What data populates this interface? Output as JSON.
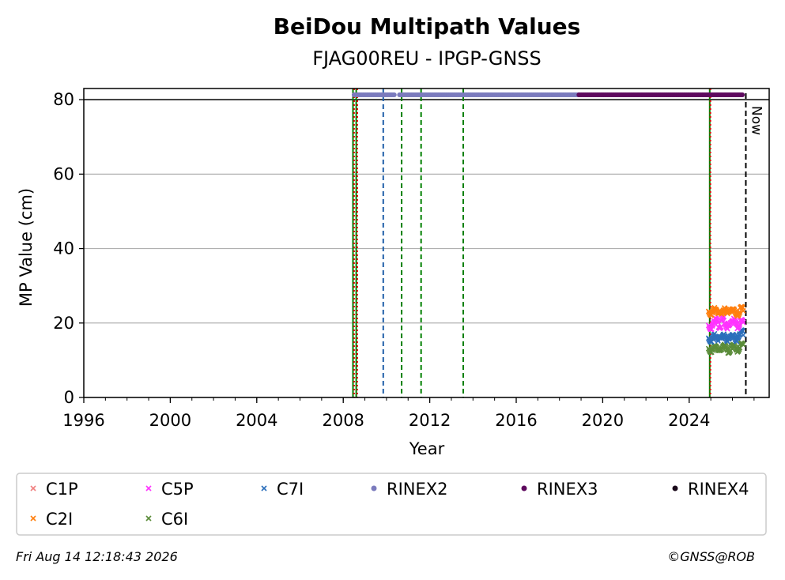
{
  "chart_data": {
    "type": "scatter",
    "title": "BeiDou Multipath Values",
    "subtitle": "FJAG00REU - IPGP-GNSS",
    "xlabel": "Year",
    "ylabel": "MP Value (cm)",
    "xlim": [
      1996.0,
      2027.7
    ],
    "ylim": [
      0,
      83
    ],
    "x_ticks": [
      1996,
      2000,
      2004,
      2008,
      2012,
      2016,
      2020,
      2024
    ],
    "x_tick_labels": [
      "1996",
      "2000",
      "2004",
      "2008",
      "2012",
      "2016",
      "2020",
      "2024"
    ],
    "y_ticks": [
      0,
      20,
      40,
      60,
      80
    ],
    "y_tick_labels": [
      "0",
      "20",
      "40",
      "60",
      "80"
    ],
    "grid": "y",
    "reference_line_y": 80,
    "series": [
      {
        "name": "C1P",
        "marker": "x",
        "color": "#f08080",
        "x_range": [
          2024.9,
          2026.5
        ],
        "values": []
      },
      {
        "name": "C2I",
        "marker": "x",
        "color": "#ff7f0e",
        "x_range": [
          2024.9,
          2026.5
        ],
        "values": [
          23.0,
          23.4,
          22.8,
          23.6,
          22.6,
          23.2,
          23.8,
          22.9,
          23.1,
          22.7,
          23.5,
          23.0
        ]
      },
      {
        "name": "C5P",
        "marker": "x",
        "color": "#ff33ff",
        "x_range": [
          2024.9,
          2026.5
        ],
        "values": [
          19.2,
          19.8,
          20.4,
          19.5,
          20.8,
          19.1,
          20.2,
          19.7,
          20.6,
          19.4,
          20.0,
          19.9
        ]
      },
      {
        "name": "C6I",
        "marker": "x",
        "color": "#5b8c3a",
        "x_range": [
          2024.9,
          2026.5
        ],
        "values": [
          13.0,
          13.3,
          12.9,
          13.5,
          13.1,
          13.4,
          12.8,
          13.2,
          13.6,
          13.1,
          13.7,
          14.0
        ]
      },
      {
        "name": "C7I",
        "marker": "x",
        "color": "#2c6fbb",
        "x_range": [
          2024.9,
          2026.5
        ],
        "values": [
          15.8,
          16.4,
          15.5,
          16.9,
          16.1,
          15.7,
          16.6,
          16.0,
          15.9,
          16.8,
          17.2,
          16.5
        ]
      }
    ],
    "rinex_availability": [
      {
        "name": "RINEX2",
        "color": "#7b7bbd",
        "y": 81.3,
        "spans": [
          [
            2008.5,
            2010.4
          ],
          [
            2010.6,
            2018.9
          ]
        ]
      },
      {
        "name": "RINEX3",
        "color": "#5e0a5e",
        "y": 81.3,
        "spans": [
          [
            2018.9,
            2026.5
          ]
        ]
      },
      {
        "name": "RINEX4",
        "color": "#1a0a1a",
        "y": 81.3,
        "spans": []
      }
    ],
    "event_lines": [
      {
        "x": 2008.45,
        "color": "#008000",
        "style": "solid"
      },
      {
        "x": 2008.5,
        "color": "#e00000",
        "style": "dotted"
      },
      {
        "x": 2008.6,
        "color": "#008000",
        "style": "solid"
      },
      {
        "x": 2008.65,
        "color": "#e00000",
        "style": "dotted"
      },
      {
        "x": 2009.85,
        "color": "#1f5fa8",
        "style": "dashed"
      },
      {
        "x": 2010.7,
        "color": "#008000",
        "style": "dashed"
      },
      {
        "x": 2011.6,
        "color": "#008000",
        "style": "dashed"
      },
      {
        "x": 2013.55,
        "color": "#008000",
        "style": "dashed"
      },
      {
        "x": 2024.95,
        "color": "#008000",
        "style": "solid"
      },
      {
        "x": 2024.98,
        "color": "#e00000",
        "style": "dotted"
      }
    ],
    "now": {
      "x": 2026.62,
      "label": "Now"
    },
    "legend_position": "below",
    "legend": [
      {
        "label": "C1P",
        "marker": "x",
        "color": "#f08080"
      },
      {
        "label": "C5P",
        "marker": "x",
        "color": "#ff33ff"
      },
      {
        "label": "C7I",
        "marker": "x",
        "color": "#2c6fbb"
      },
      {
        "label": "RINEX2",
        "marker": "dot",
        "color": "#7b7bbd"
      },
      {
        "label": "RINEX3",
        "marker": "dot",
        "color": "#5e0a5e"
      },
      {
        "label": "RINEX4",
        "marker": "dot",
        "color": "#1a0a1a"
      },
      {
        "label": "C2I",
        "marker": "x",
        "color": "#ff7f0e"
      },
      {
        "label": "C6I",
        "marker": "x",
        "color": "#5b8c3a"
      }
    ]
  },
  "footer": {
    "timestamp": "Fri Aug 14 12:18:43 2026",
    "copyright": "©GNSS@ROB"
  }
}
